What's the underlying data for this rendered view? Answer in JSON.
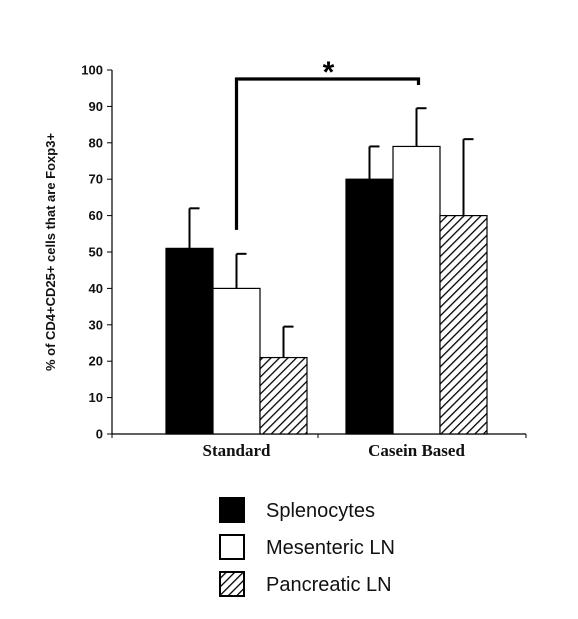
{
  "chart_data": {
    "type": "bar",
    "categories": [
      "Standard",
      "Casein Based"
    ],
    "ylabel": "% of CD4+CD25+ cells that are Foxp3+",
    "xlabel": "",
    "ylim": [
      0,
      100
    ],
    "yticks": [
      0,
      10,
      20,
      30,
      40,
      50,
      60,
      70,
      80,
      90,
      100
    ],
    "series": [
      {
        "name": "Splenocytes",
        "values": [
          51,
          70
        ],
        "errors": [
          11,
          9
        ],
        "fill": "#000000",
        "pattern": "solid"
      },
      {
        "name": "Mesenteric LN",
        "values": [
          40,
          79
        ],
        "errors": [
          9.5,
          10.5
        ],
        "fill": "#ffffff",
        "pattern": "none"
      },
      {
        "name": "Pancreatic LN",
        "values": [
          21,
          60
        ],
        "errors": [
          8.5,
          21
        ],
        "fill": "#ffffff",
        "pattern": "hatch"
      }
    ],
    "significance": {
      "label": "*",
      "from": "Standard / Mesenteric LN",
      "to": "Casein Based / Mesenteric LN"
    },
    "legend_placement": "bottom",
    "grid": false
  }
}
